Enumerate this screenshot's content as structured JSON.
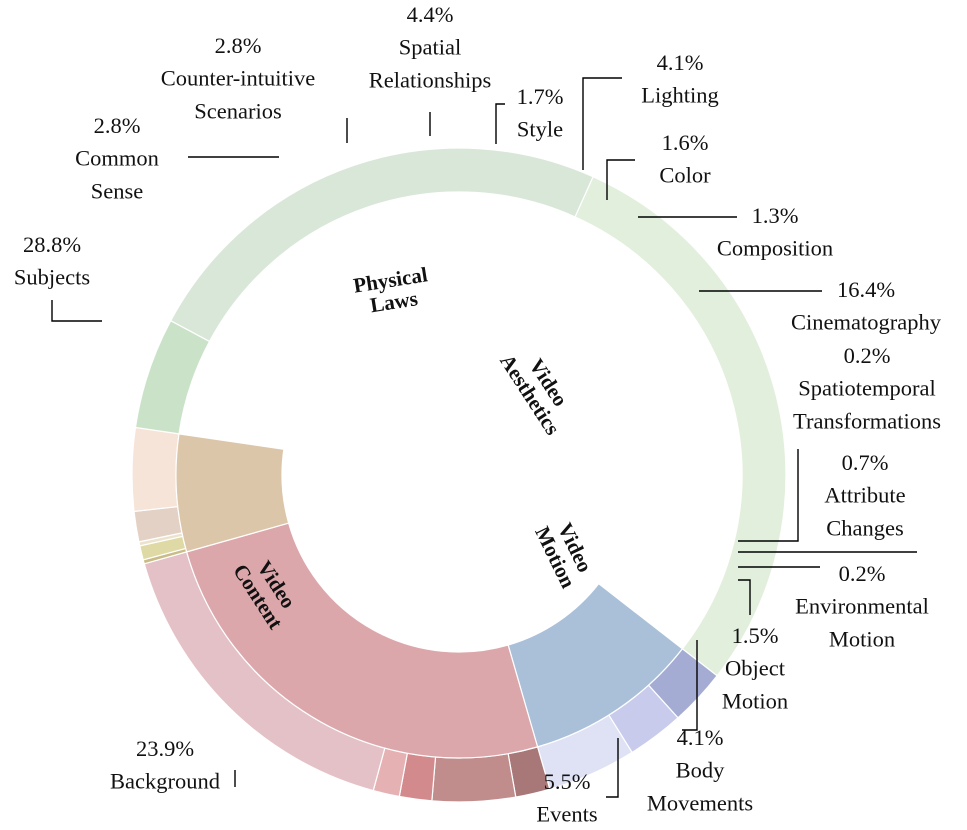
{
  "chart_data": {
    "type": "sunburst",
    "inner": [
      {
        "name": "Video Content",
        "lines": [
          "Video",
          "Content"
        ],
        "color": "#b2c9b0"
      },
      {
        "name": "Physical Laws",
        "lines": [
          "Physical",
          "Laws"
        ],
        "color": "#aac0d9"
      },
      {
        "name": "Video Aesthetics",
        "lines": [
          "Video",
          "Aesthetics"
        ],
        "color": "#dca7ab"
      },
      {
        "name": "Video Motion",
        "lines": [
          "Video",
          "Motion"
        ],
        "color": "#dcc6a9"
      }
    ],
    "outer": [
      {
        "value_label": "28.8%",
        "value": 28.8,
        "lines": [
          "Subjects"
        ],
        "parent": "Video Content",
        "color": "#e2efdc"
      },
      {
        "value_label": "2.8%",
        "value": 2.8,
        "lines": [
          "Common",
          "Sense"
        ],
        "parent": "Physical Laws",
        "color": "#a5acd4"
      },
      {
        "value_label": "2.8%",
        "value": 2.8,
        "lines": [
          "Counter-intuitive",
          "Scenarios"
        ],
        "parent": "Physical Laws",
        "color": "#c8cbec"
      },
      {
        "value_label": "4.4%",
        "value": 4.4,
        "lines": [
          "Spatial",
          "Relationships"
        ],
        "parent": "Physical Laws",
        "color": "#dfe2f4"
      },
      {
        "value_label": "1.7%",
        "value": 1.7,
        "lines": [
          "Style"
        ],
        "parent": "Video Aesthetics",
        "color": "#a87878"
      },
      {
        "value_label": "4.1%",
        "value": 4.1,
        "lines": [
          "Lighting"
        ],
        "parent": "Video Aesthetics",
        "color": "#c08c8c"
      },
      {
        "value_label": "1.6%",
        "value": 1.6,
        "lines": [
          "Color"
        ],
        "parent": "Video Aesthetics",
        "color": "#d38a8d"
      },
      {
        "value_label": "1.3%",
        "value": 1.3,
        "lines": [
          "Composition"
        ],
        "parent": "Video Aesthetics",
        "color": "#e6b1b3"
      },
      {
        "value_label": "16.4%",
        "value": 16.4,
        "lines": [
          "Cinematography"
        ],
        "parent": "Video Aesthetics",
        "color": "#e4c1c6"
      },
      {
        "value_label": "0.2%",
        "value": 0.2,
        "lines": [
          "Spatiotemporal",
          "Transformations"
        ],
        "parent": "Video Motion",
        "color": "#c9bc86"
      },
      {
        "value_label": "0.7%",
        "value": 0.7,
        "lines": [
          "Attribute",
          "Changes"
        ],
        "parent": "Video Motion",
        "color": "#dfd9a6"
      },
      {
        "value_label": "0.2%",
        "value": 0.2,
        "lines": [
          "Environmental",
          "Motion"
        ],
        "parent": "Video Motion",
        "color": "#ece3cd"
      },
      {
        "value_label": "1.5%",
        "value": 1.5,
        "lines": [
          "Object",
          "Motion"
        ],
        "parent": "Video Motion",
        "color": "#e3d1c6"
      },
      {
        "value_label": "4.1%",
        "value": 4.1,
        "lines": [
          "Body",
          "Movements"
        ],
        "parent": "Video Motion",
        "color": "#f6e4d8"
      },
      {
        "value_label": "5.5%",
        "value": 5.5,
        "lines": [
          "Events"
        ],
        "parent": "Video Content",
        "color": "#cae3c8"
      },
      {
        "value_label": "23.9%",
        "value": 23.9,
        "lines": [
          "Background"
        ],
        "parent": "Video Content",
        "color": "#d9e7d8"
      }
    ]
  }
}
